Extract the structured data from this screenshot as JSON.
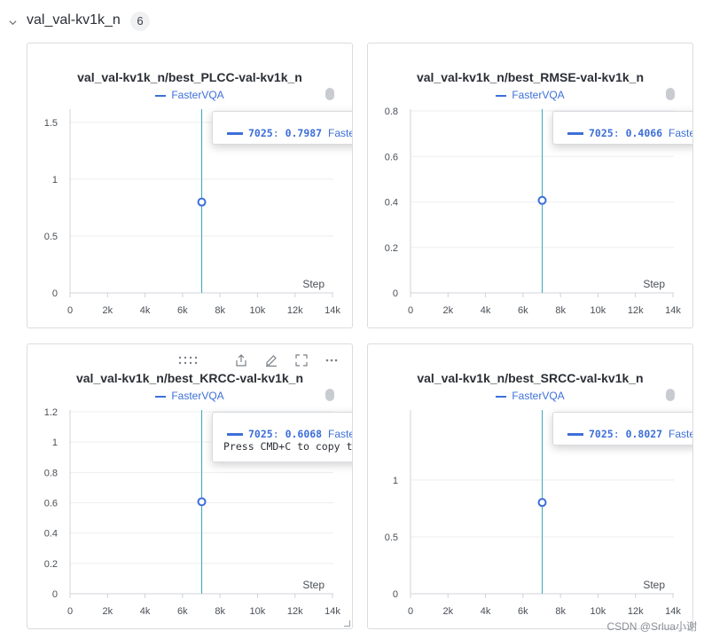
{
  "section": {
    "title": "val_val-kv1k_n",
    "count": "6"
  },
  "panels": [
    {
      "title": "val_val-kv1k_n/best_PLCC-val-kv1k_n",
      "legend": "FasterVQA",
      "tooltip": {
        "step": "7025",
        "value": "0.7987",
        "name": "FasterVQA"
      }
    },
    {
      "title": "val_val-kv1k_n/best_RMSE-val-kv1k_n",
      "legend": "FasterVQA",
      "tooltip": {
        "step": "7025",
        "value": "0.4066",
        "name": "FasterVQA"
      }
    },
    {
      "title": "val_val-kv1k_n/best_KRCC-val-kv1k_n",
      "legend": "FasterVQA",
      "tooltip": {
        "step": "7025",
        "value": "0.6068",
        "name": "FasterVQA",
        "hint": "Press CMD+C to copy this data"
      }
    },
    {
      "title": "val_val-kv1k_n/best_SRCC-val-kv1k_n",
      "legend": "FasterVQA",
      "tooltip": {
        "step": "7025",
        "value": "0.8027",
        "name": "FasterVQA"
      }
    }
  ],
  "colors": {
    "series": "#3d6fd8",
    "crosshair": "#3aa8b8",
    "grid": "#eceef1",
    "axis": "#cfd3d8"
  },
  "icons": [
    "chevron-down-icon",
    "drag-handle-icon",
    "share-icon",
    "edit-icon",
    "fullscreen-icon",
    "more-icon"
  ],
  "watermark": "CSDN @Srlua小谢",
  "chart_data": [
    {
      "type": "scatter",
      "title": "val_val-kv1k_n/best_PLCC-val-kv1k_n",
      "xlabel": "Step",
      "xlim": [
        0,
        14000
      ],
      "ylim": [
        0,
        1.6
      ],
      "xticks": [
        "0",
        "2k",
        "4k",
        "6k",
        "8k",
        "10k",
        "12k",
        "14k"
      ],
      "xtick_values": [
        0,
        2000,
        4000,
        6000,
        8000,
        10000,
        12000,
        14000
      ],
      "yticks": [
        "0",
        "0.5",
        "1",
        "1.5"
      ],
      "ytick_values": [
        0,
        0.5,
        1,
        1.5
      ],
      "series": [
        {
          "name": "FasterVQA",
          "x": [
            7025
          ],
          "y": [
            0.7987
          ]
        }
      ],
      "legend": "top-center",
      "grid": true
    },
    {
      "type": "scatter",
      "title": "val_val-kv1k_n/best_RMSE-val-kv1k_n",
      "xlabel": "Step",
      "xlim": [
        0,
        14000
      ],
      "ylim": [
        0,
        0.8
      ],
      "xticks": [
        "0",
        "2k",
        "4k",
        "6k",
        "8k",
        "10k",
        "12k",
        "14k"
      ],
      "xtick_values": [
        0,
        2000,
        4000,
        6000,
        8000,
        10000,
        12000,
        14000
      ],
      "yticks": [
        "0",
        "0.2",
        "0.4",
        "0.6",
        "0.8"
      ],
      "ytick_values": [
        0,
        0.2,
        0.4,
        0.6,
        0.8
      ],
      "series": [
        {
          "name": "FasterVQA",
          "x": [
            7025
          ],
          "y": [
            0.4066
          ]
        }
      ],
      "legend": "top-center",
      "grid": true
    },
    {
      "type": "scatter",
      "title": "val_val-kv1k_n/best_KRCC-val-kv1k_n",
      "xlabel": "Step",
      "xlim": [
        0,
        14000
      ],
      "ylim": [
        0,
        1.2
      ],
      "xticks": [
        "0",
        "2k",
        "4k",
        "6k",
        "8k",
        "10k",
        "12k",
        "14k"
      ],
      "xtick_values": [
        0,
        2000,
        4000,
        6000,
        8000,
        10000,
        12000,
        14000
      ],
      "yticks": [
        "0",
        "0.2",
        "0.4",
        "0.6",
        "0.8",
        "1",
        "1.2"
      ],
      "ytick_values": [
        0,
        0.2,
        0.4,
        0.6,
        0.8,
        1,
        1.2
      ],
      "series": [
        {
          "name": "FasterVQA",
          "x": [
            7025
          ],
          "y": [
            0.6068
          ]
        }
      ],
      "legend": "top-center",
      "grid": true
    },
    {
      "type": "scatter",
      "title": "val_val-kv1k_n/best_SRCC-val-kv1k_n",
      "xlabel": "Step",
      "xlim": [
        0,
        14000
      ],
      "ylim": [
        0,
        1.6
      ],
      "xticks": [
        "0",
        "2k",
        "4k",
        "6k",
        "8k",
        "10k",
        "12k",
        "14k"
      ],
      "xtick_values": [
        0,
        2000,
        4000,
        6000,
        8000,
        10000,
        12000,
        14000
      ],
      "yticks": [
        "0",
        "0.5",
        "1"
      ],
      "ytick_values": [
        0,
        0.5,
        1
      ],
      "series": [
        {
          "name": "FasterVQA",
          "x": [
            7025
          ],
          "y": [
            0.8027
          ]
        }
      ],
      "legend": "top-center",
      "grid": true
    }
  ]
}
